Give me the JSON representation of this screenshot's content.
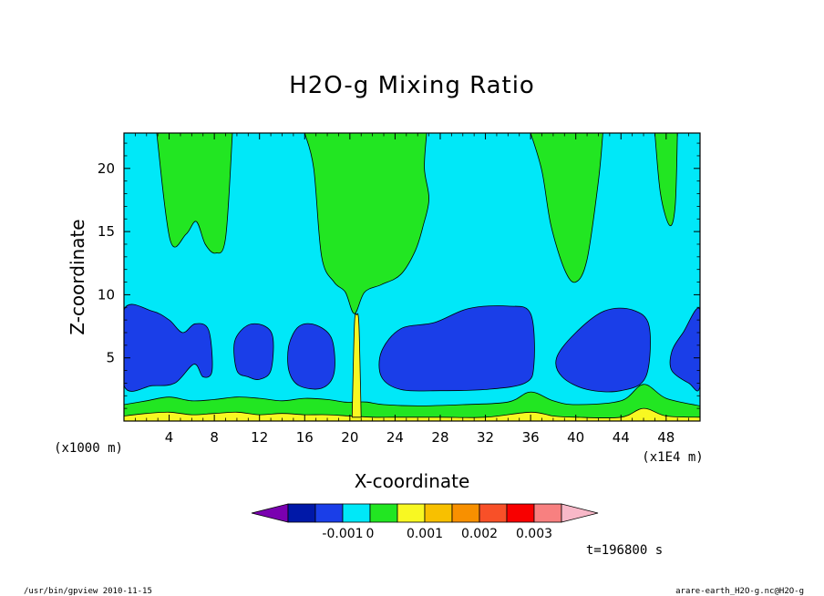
{
  "chart_data": {
    "type": "contour",
    "title": "H2O-g Mixing Ratio",
    "xlabel": "X-coordinate",
    "ylabel": "Z-coordinate",
    "x_unit": "(x1E4 m)",
    "y_unit": "(x1000 m)",
    "xlim": [
      0,
      51
    ],
    "ylim": [
      0,
      22.8
    ],
    "xticks": [
      4,
      8,
      12,
      16,
      20,
      24,
      28,
      32,
      36,
      40,
      44,
      48
    ],
    "yticks": [
      5,
      10,
      15,
      20
    ],
    "colorbar": {
      "colors": [
        "#7a00b0",
        "#0018a8",
        "#1a3ee8",
        "#00e8f8",
        "#22e622",
        "#f8f822",
        "#f8c000",
        "#f89000",
        "#f85028",
        "#f80000",
        "#f88080",
        "#f8b8c8"
      ],
      "labels": [
        {
          "text": "-0.001",
          "index": 2
        },
        {
          "text": "0",
          "index": 3
        },
        {
          "text": "0.001",
          "index": 5
        },
        {
          "text": "0.002",
          "index": 7
        },
        {
          "text": "0.003",
          "index": 9
        }
      ]
    },
    "levels": {
      "background": "#00e8f8",
      "dark_blue": "#1a3ee8",
      "green": "#22e622",
      "yellow": "#f8f822"
    },
    "upper_green_regions": [
      {
        "x": [
          2.9,
          4.1,
          5.5,
          6.4,
          7.2,
          8.1,
          9.0,
          9.6
        ],
        "z": [
          22.8,
          14.3,
          14.8,
          15.8,
          14.0,
          13.3,
          14.5,
          22.8
        ]
      },
      {
        "x": [
          16.0,
          16.8,
          17.5,
          18.6,
          19.6,
          20.4,
          21.3,
          22.8,
          24.5,
          25.8,
          26.5,
          27.0,
          26.6,
          26.8
        ],
        "z": [
          22.8,
          20.0,
          13.0,
          11.0,
          10.2,
          8.5,
          10.2,
          10.8,
          11.6,
          13.5,
          15.5,
          17.6,
          20.0,
          22.8
        ]
      },
      {
        "x": [
          36.0,
          37.0,
          37.8,
          39.0,
          40.0,
          41.0,
          42.0,
          42.4
        ],
        "z": [
          22.8,
          19.8,
          15.5,
          12.0,
          11.0,
          12.8,
          19.0,
          22.8
        ]
      },
      {
        "x": [
          47.0,
          47.5,
          48.3,
          48.8,
          49.0
        ],
        "z": [
          22.8,
          18.0,
          15.5,
          17.0,
          22.8
        ]
      }
    ],
    "dark_blue_regions": [
      {
        "x": [
          0,
          2.5,
          4.0,
          5.2,
          6.3,
          7.5,
          7.8,
          7.0,
          6.2,
          4.5,
          2.5,
          0
        ],
        "z": [
          8.8,
          8.7,
          8.0,
          7.0,
          7.7,
          7.2,
          4.0,
          3.5,
          4.5,
          3.0,
          2.8,
          2.8
        ]
      },
      {
        "x": [
          9.8,
          11.0,
          12.5,
          13.2,
          13.0,
          12.0,
          11.0,
          10.0
        ],
        "z": [
          6.3,
          7.6,
          7.5,
          6.5,
          4.0,
          3.3,
          3.5,
          4.0
        ]
      },
      {
        "x": [
          14.6,
          15.5,
          17.0,
          18.4,
          18.6,
          17.5,
          15.5,
          14.6
        ],
        "z": [
          6.0,
          7.5,
          7.6,
          6.5,
          3.8,
          2.6,
          2.8,
          4.0
        ]
      },
      {
        "x": [
          22.8,
          24.5,
          27.5,
          30.5,
          34.0,
          36.0,
          36.3,
          35.5,
          32.0,
          28.0,
          24.5,
          22.8
        ],
        "z": [
          5.5,
          7.3,
          7.8,
          8.9,
          9.1,
          8.5,
          4.5,
          3.0,
          2.5,
          2.4,
          2.5,
          3.5
        ]
      },
      {
        "x": [
          38.3,
          40.0,
          42.5,
          45.0,
          46.5,
          46.2,
          44.0,
          41.0,
          38.8
        ],
        "z": [
          5.0,
          7.0,
          8.7,
          8.8,
          7.5,
          3.5,
          2.4,
          2.5,
          3.5
        ]
      },
      {
        "x": [
          48.5,
          49.5,
          51,
          51,
          50.0,
          48.5
        ],
        "z": [
          5.5,
          7.0,
          8.8,
          2.8,
          3.0,
          4.0
        ]
      }
    ],
    "green_band_top": {
      "x": [
        0,
        2,
        4,
        6,
        8,
        10,
        12,
        14,
        16,
        18,
        19.5,
        20.5,
        21.5,
        23,
        26,
        30,
        34,
        36,
        38,
        40,
        44,
        46,
        48,
        51
      ],
      "z": [
        1.3,
        1.6,
        1.9,
        1.6,
        1.7,
        1.9,
        1.8,
        1.6,
        1.8,
        1.7,
        1.5,
        1.5,
        1.5,
        1.3,
        1.2,
        1.3,
        1.5,
        2.3,
        1.6,
        1.3,
        1.6,
        2.9,
        1.8,
        1.2
      ]
    },
    "yellow_band_top": {
      "x": [
        0,
        2,
        4,
        6,
        8,
        10,
        12,
        14,
        16,
        18,
        20,
        22,
        24,
        28,
        32,
        36,
        38,
        40,
        44,
        46,
        48,
        51
      ],
      "z": [
        0.4,
        0.6,
        0.7,
        0.5,
        0.6,
        0.7,
        0.5,
        0.6,
        0.5,
        0.5,
        0.4,
        0.3,
        0.3,
        0.3,
        0.3,
        0.7,
        0.4,
        0.3,
        0.3,
        1.0,
        0.4,
        0.3
      ]
    },
    "yellow_plume": {
      "x": [
        20.2,
        20.4,
        20.6,
        20.8,
        21.0
      ],
      "z": [
        0.3,
        7.6,
        8.4,
        7.6,
        0.3
      ]
    }
  },
  "time_label": "t=196800 s",
  "footer_left": "/usr/bin/gpview  2010-11-15",
  "footer_right": "arare-earth_H2O-g.nc@H2O-g"
}
